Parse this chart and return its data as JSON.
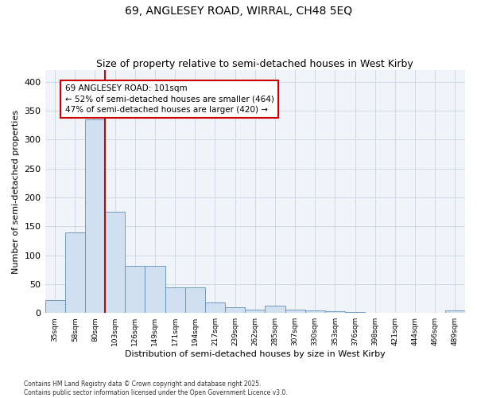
{
  "title": "69, ANGLESEY ROAD, WIRRAL, CH48 5EQ",
  "subtitle": "Size of property relative to semi-detached houses in West Kirby",
  "xlabel": "Distribution of semi-detached houses by size in West Kirby",
  "ylabel": "Number of semi-detached properties",
  "footer": "Contains HM Land Registry data © Crown copyright and database right 2025.\nContains public sector information licensed under the Open Government Licence v3.0.",
  "bins": [
    "35sqm",
    "58sqm",
    "80sqm",
    "103sqm",
    "126sqm",
    "149sqm",
    "171sqm",
    "194sqm",
    "217sqm",
    "239sqm",
    "262sqm",
    "285sqm",
    "307sqm",
    "330sqm",
    "353sqm",
    "376sqm",
    "398sqm",
    "421sqm",
    "444sqm",
    "466sqm",
    "489sqm"
  ],
  "values": [
    22,
    140,
    335,
    175,
    82,
    82,
    45,
    45,
    18,
    10,
    6,
    13,
    6,
    4,
    3,
    2,
    0,
    0,
    0,
    0,
    4
  ],
  "bar_color": "#d0e0f0",
  "bar_edge_color": "#6090b8",
  "marker_bin_index": 2,
  "marker_label": "69 ANGLESEY ROAD: 101sqm",
  "annotation_smaller": "← 52% of semi-detached houses are smaller (464)",
  "annotation_larger": "47% of semi-detached houses are larger (420) →",
  "annotation_box_color": "#ffffff",
  "annotation_box_edge": "#cc0000",
  "vline_color": "#cc0000",
  "plot_bg_color": "#f0f4f8",
  "fig_bg_color": "#ffffff",
  "ylim": [
    0,
    420
  ],
  "yticks": [
    0,
    50,
    100,
    150,
    200,
    250,
    300,
    350,
    400
  ],
  "title_fontsize": 10,
  "subtitle_fontsize": 9,
  "annotation_fontsize": 7.5
}
